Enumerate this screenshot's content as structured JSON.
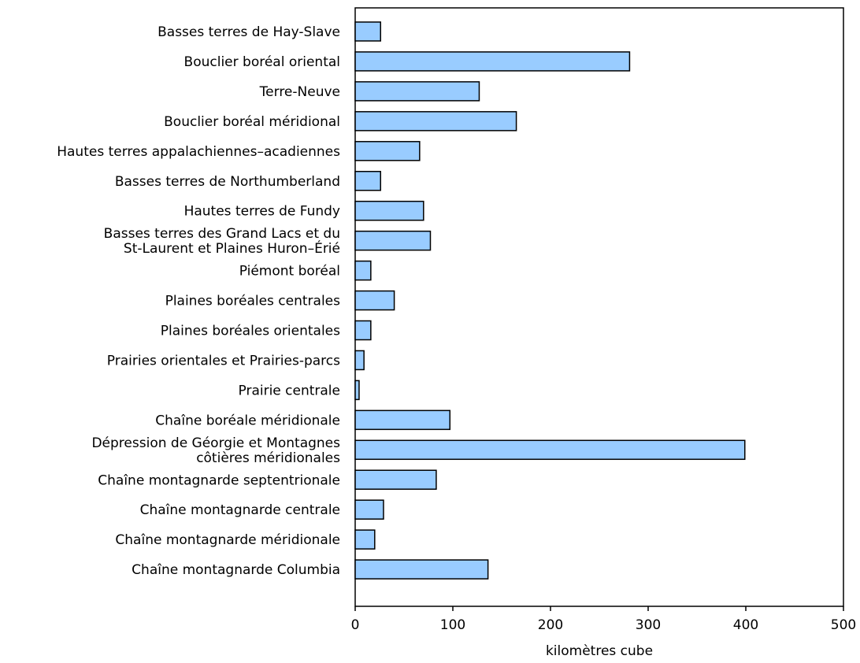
{
  "chart_data": {
    "type": "bar",
    "orientation": "horizontal",
    "title": "",
    "xlabel": "kilomètres cube",
    "ylabel": "",
    "xlim": [
      0,
      500
    ],
    "xticks": [
      0,
      100,
      200,
      300,
      400,
      500
    ],
    "grid": false,
    "legend": "none",
    "bar_color": "#99ccff",
    "categories": [
      [
        "Basses terres de Hay-Slave"
      ],
      [
        "Bouclier boréal oriental"
      ],
      [
        "Terre-Neuve"
      ],
      [
        "Bouclier boréal méridional"
      ],
      [
        "Hautes terres appalachiennes–acadiennes"
      ],
      [
        "Basses terres de Northumberland"
      ],
      [
        "Hautes terres de Fundy"
      ],
      [
        "Basses terres des Grand Lacs et du",
        "St-Laurent et Plaines Huron–Érié"
      ],
      [
        "Piémont boréal"
      ],
      [
        "Plaines boréales centrales"
      ],
      [
        "Plaines boréales orientales"
      ],
      [
        "Prairies orientales et Prairies-parcs"
      ],
      [
        "Prairie centrale"
      ],
      [
        "Chaîne boréale méridionale"
      ],
      [
        "Dépression de Géorgie et Montagnes",
        "côtières méridionales"
      ],
      [
        "Chaîne montagnarde septentrionale"
      ],
      [
        "Chaîne montagnarde centrale"
      ],
      [
        "Chaîne montagnarde méridionale"
      ],
      [
        "Chaîne montagnarde Columbia"
      ]
    ],
    "values": [
      26,
      281,
      127,
      165,
      66,
      26,
      70,
      77,
      16,
      40,
      16,
      9,
      4,
      97,
      399,
      83,
      29,
      20,
      136
    ]
  }
}
